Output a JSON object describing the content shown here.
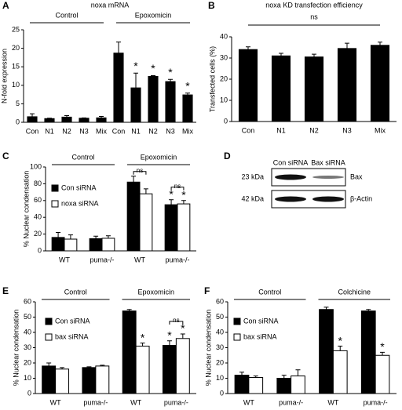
{
  "chart_data": [
    {
      "panel": "A",
      "type": "bar",
      "title": "noxa mRNA",
      "ylabel": "N-fold expression",
      "categories": [
        "Con",
        "N1",
        "N2",
        "N3",
        "Mix",
        "Con",
        "N1",
        "N2",
        "N3",
        "Mix"
      ],
      "values": [
        1.5,
        1.0,
        1.4,
        1.1,
        1.2,
        18.7,
        9.3,
        12.4,
        11,
        7.4
      ],
      "errors": [
        0.8,
        0.1,
        0.4,
        0.1,
        0.4,
        3,
        4,
        0.2,
        0.6,
        0.5
      ],
      "significance": [
        null,
        null,
        null,
        null,
        null,
        null,
        "*",
        "*",
        "*",
        "*"
      ],
      "groups": [
        "Control",
        "Epoxomicin"
      ],
      "color": "#000000",
      "ylim": [
        0,
        25
      ],
      "yticks": [
        0,
        5,
        10,
        15,
        20,
        25
      ]
    },
    {
      "panel": "B",
      "type": "bar",
      "title": "noxa KD transfection efficiency",
      "ylabel": "Transfected cells (%)",
      "categories": [
        "Con",
        "N1",
        "N2",
        "N3",
        "Mix"
      ],
      "values": [
        34,
        31,
        30.5,
        34.5,
        36
      ],
      "errors": [
        1.3,
        1.2,
        1.3,
        2.5,
        1.5
      ],
      "annotation": "ns",
      "color": "#000000",
      "ylim": [
        0,
        40
      ],
      "yticks": [
        0,
        10,
        20,
        30,
        40
      ]
    },
    {
      "panel": "C",
      "type": "grouped_bar",
      "ylabel": "% Nuclear condensation",
      "categories": [
        "WT",
        "puma-/-",
        "WT",
        "puma-/-"
      ],
      "groups": [
        "Control",
        "Epoxomicin"
      ],
      "series": [
        {
          "name": "Con siRNA",
          "color": "#000000",
          "values": [
            16,
            14.5,
            82,
            55
          ],
          "errors": [
            6,
            3,
            7,
            6
          ],
          "significance": [
            null,
            null,
            null,
            "*"
          ]
        },
        {
          "name": "noxa siRNA",
          "color": "#ffffff",
          "values": [
            14,
            15,
            68,
            56
          ],
          "errors": [
            5,
            3,
            6,
            4
          ],
          "significance": [
            null,
            null,
            null,
            "*"
          ]
        }
      ],
      "pair_labels": [
        null,
        null,
        "ns",
        "ns"
      ],
      "ylim": [
        0,
        100
      ],
      "yticks": [
        0,
        20,
        40,
        60,
        80,
        100
      ]
    },
    {
      "panel": "D",
      "type": "blot",
      "lanes": [
        "Con siRNA",
        "Bax siRNA"
      ],
      "rows": [
        {
          "size": "23 kDa",
          "label": "Bax"
        },
        {
          "size": "42 kDa",
          "label": "β-Actin"
        }
      ]
    },
    {
      "panel": "E",
      "type": "grouped_bar",
      "ylabel": "% Nuclear condensation",
      "categories": [
        "WT",
        "puma-/-",
        "WT",
        "puma-/-"
      ],
      "groups": [
        "Control",
        "Epoxomicin"
      ],
      "series": [
        {
          "name": "Con siRNA",
          "color": "#000000",
          "values": [
            18,
            17,
            54,
            31.5
          ],
          "errors": [
            2,
            0.5,
            1,
            3
          ],
          "significance": [
            null,
            null,
            null,
            "*"
          ]
        },
        {
          "name": "bax siRNA",
          "color": "#ffffff",
          "values": [
            16,
            18,
            31,
            36
          ],
          "errors": [
            1,
            0.5,
            2,
            3
          ],
          "significance": [
            null,
            null,
            "*",
            "*"
          ]
        }
      ],
      "pair_labels": [
        null,
        null,
        null,
        "ns"
      ],
      "ylim": [
        0,
        60
      ],
      "yticks": [
        0,
        10,
        20,
        30,
        40,
        50,
        60
      ]
    },
    {
      "panel": "F",
      "type": "grouped_bar",
      "ylabel": "% Nuclear condensation",
      "categories": [
        "WT",
        "puma-/-",
        "WT",
        "puma-/-"
      ],
      "groups": [
        "Control",
        "Colchicine"
      ],
      "series": [
        {
          "name": "Con siRNA",
          "color": "#000000",
          "values": [
            12,
            10,
            55,
            54
          ],
          "errors": [
            2,
            2,
            1.5,
            1
          ],
          "significance": [
            null,
            null,
            null,
            null
          ]
        },
        {
          "name": "bax siRNA",
          "color": "#ffffff",
          "values": [
            10.5,
            11.5,
            28,
            25
          ],
          "errors": [
            1,
            4,
            3,
            2
          ],
          "significance": [
            null,
            null,
            "*",
            "*"
          ]
        }
      ],
      "ylim": [
        0,
        60
      ],
      "yticks": [
        0,
        10,
        20,
        30,
        40,
        50,
        60
      ]
    }
  ]
}
